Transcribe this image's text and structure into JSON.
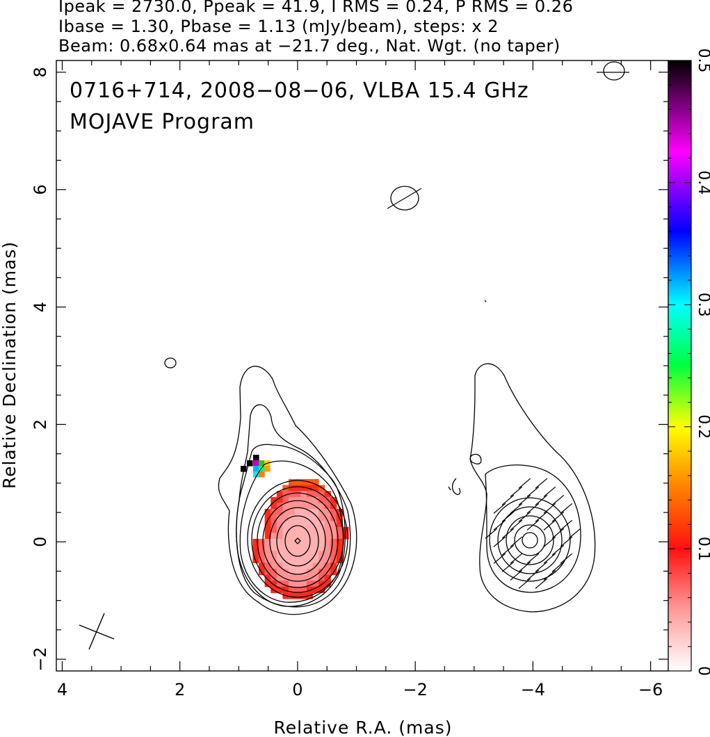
{
  "header": {
    "line1": "Ipeak = 2730.0, Ppeak = 41.9, I RMS = 0.24, P RMS = 0.26",
    "line2": "Ibase = 1.30, Pbase = 1.13 (mJy/beam), steps: x 2",
    "line3": "Beam: 0.68x0.64 mas at −21.7 deg., Nat. Wgt. (no taper)"
  },
  "chart_data": {
    "type": "heatmap",
    "title": "0716+714, 2008−08−06, VLBA 15.4 GHz",
    "subtitle": "MOJAVE Program",
    "xlabel": "Relative R.A. (mas)",
    "ylabel": "Relative Declination (mas)",
    "xlim": [
      4.1,
      -6.3
    ],
    "ylim": [
      -2.2,
      8.2
    ],
    "x_ticks": [
      4,
      2,
      0,
      -2,
      -4,
      -6
    ],
    "x_tick_labels": [
      "4",
      "2",
      "0",
      "−2",
      "−4",
      "−6"
    ],
    "y_ticks": [
      -2,
      0,
      2,
      4,
      6,
      8
    ],
    "y_tick_labels": [
      "−2",
      "0",
      "2",
      "4",
      "6",
      "8"
    ],
    "colorbar": {
      "range": [
        0,
        0.5
      ],
      "ticks": [
        0,
        0.1,
        0.2,
        0.3,
        0.4,
        0.5
      ],
      "tick_labels": [
        "0",
        "0.1",
        "0.2",
        "0.3",
        "0.4",
        "0.5"
      ]
    },
    "beam": {
      "major_mas": 0.68,
      "minor_mas": 0.64,
      "pa_deg": -21.7
    },
    "panels": [
      {
        "name": "total-intensity-with-fractional-polarization",
        "center": [
          0,
          0
        ]
      },
      {
        "name": "polarized-intensity-with-evpa",
        "center": [
          -4,
          0
        ]
      }
    ],
    "peak_ratio_levels": [
      1,
      2,
      4,
      8,
      16,
      32,
      64,
      128,
      256,
      512,
      1024,
      2048
    ]
  }
}
